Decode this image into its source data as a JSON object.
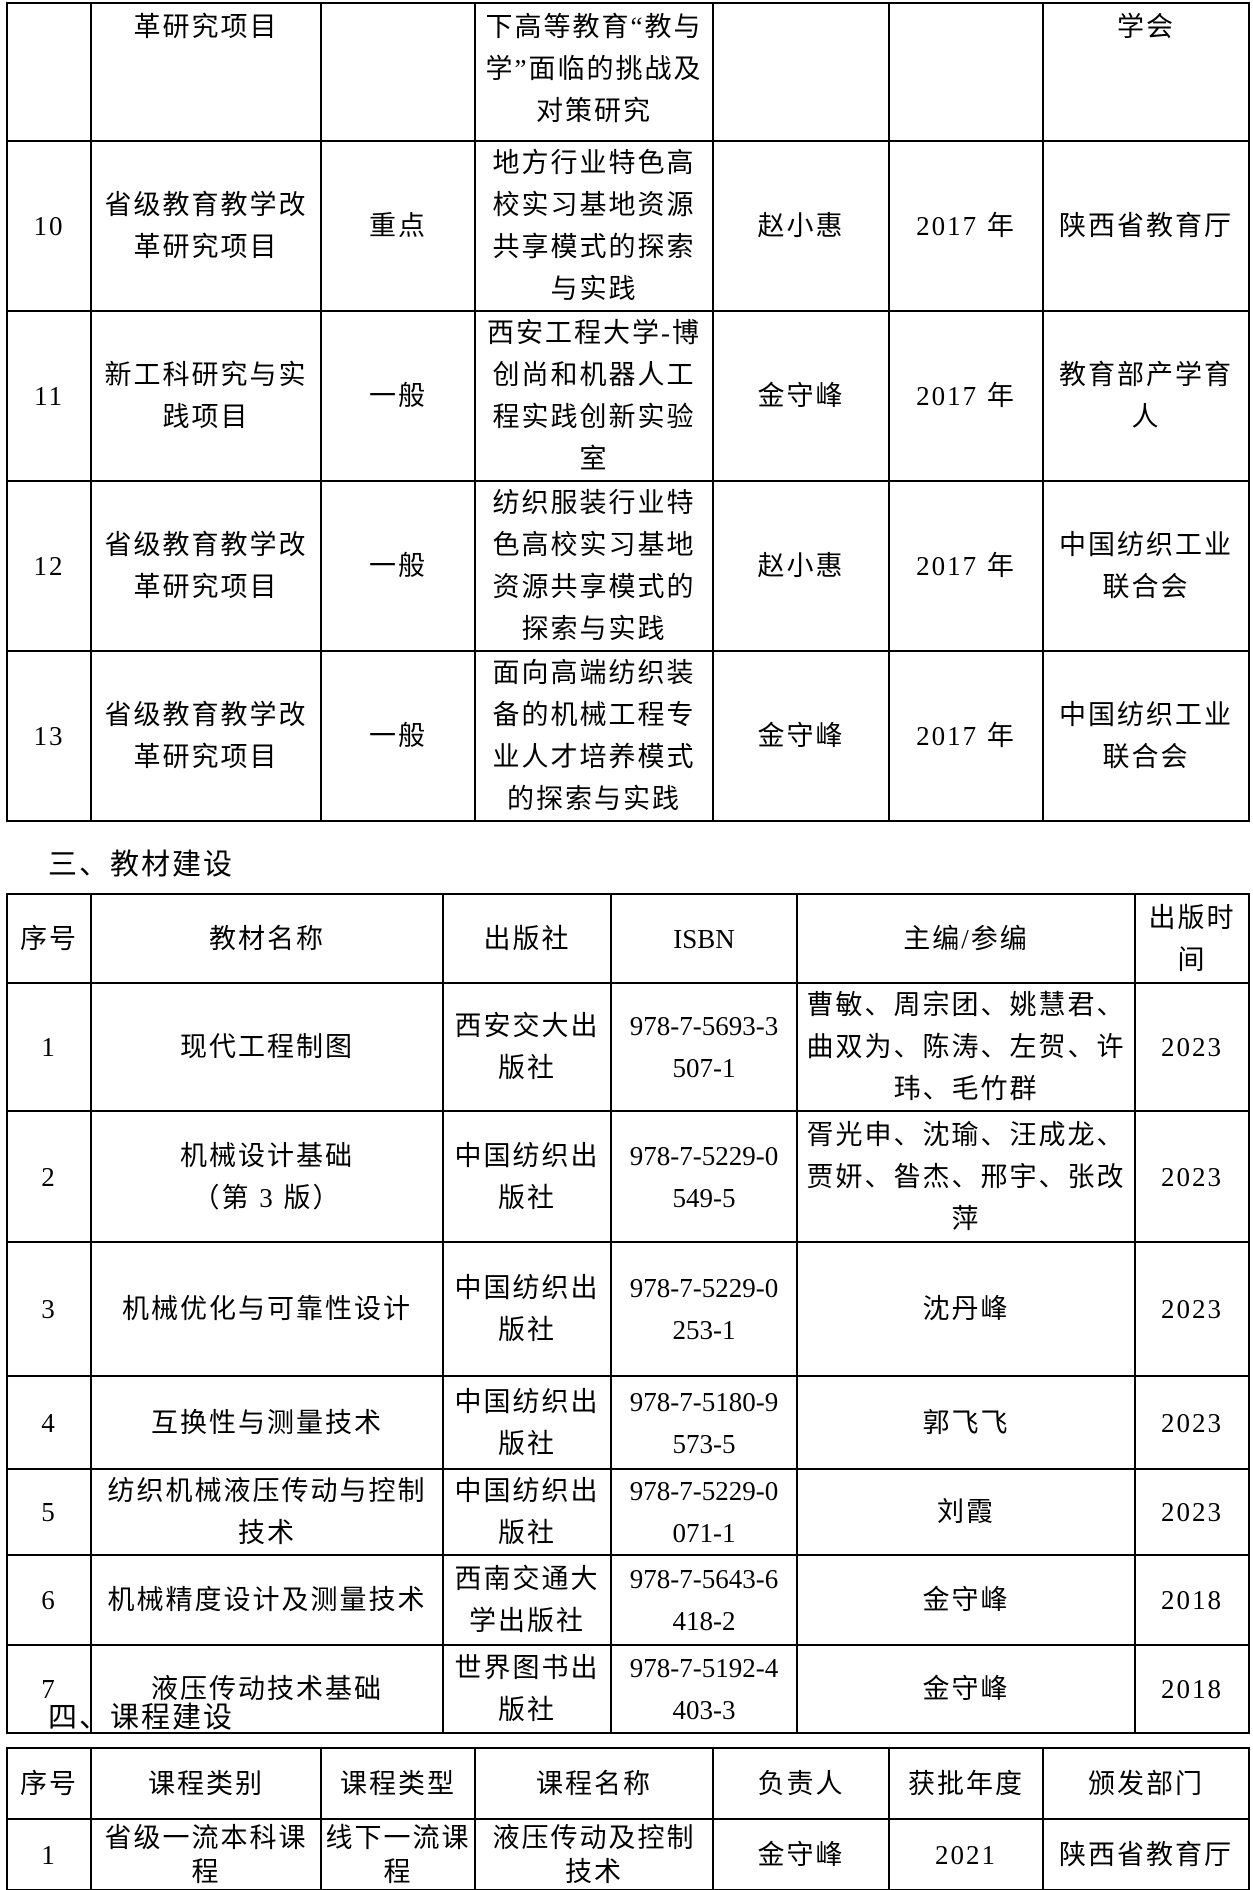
{
  "page": {
    "background_color": "#ffffff",
    "text_color": "#000000",
    "border_color": "#000000"
  },
  "sections": {
    "textbooks_heading": "三、教材建设",
    "courses_heading": "四、课程建设"
  },
  "projects_table": {
    "rows": [
      [
        "",
        "革研究项目",
        "",
        "下高等教育“教与\n学”面临的挑战及\n对策研究",
        "",
        "",
        "学会"
      ],
      [
        "10",
        "省级教育教学改\n革研究项目",
        "重点",
        "地方行业特色高\n校实习基地资源\n共享模式的探索\n与实践",
        "赵小惠",
        "2017 年",
        "陕西省教育厅"
      ],
      [
        "11",
        "新工科研究与实\n践项目",
        "一般",
        "西安工程大学-博\n创尚和机器人工\n程实践创新实验\n室",
        "金守峰",
        "2017 年",
        "教育部产学育\n人"
      ],
      [
        "12",
        "省级教育教学改\n革研究项目",
        "一般",
        "纺织服装行业特\n色高校实习基地\n资源共享模式的\n探索与实践",
        "赵小惠",
        "2017 年",
        "中国纺织工业\n联合会"
      ],
      [
        "13",
        "省级教育教学改\n革研究项目",
        "一般",
        "面向高端纺织装\n备的机械工程专\n业人才培养模式\n的探索与实践",
        "金守峰",
        "2017 年",
        "中国纺织工业\n联合会"
      ]
    ]
  },
  "textbooks_table": {
    "headers": [
      "序号",
      "教材名称",
      "出版社",
      "ISBN",
      "主编/参编",
      "出版时\n间"
    ],
    "rows": [
      [
        "1",
        "现代工程制图",
        "西安交大出\n版社",
        "978-7-5693-3\n507-1",
        "曹敏、周宗团、姚慧君、\n曲双为、陈涛、左贺、许\n玮、毛竹群",
        "2023"
      ],
      [
        "2",
        "机械设计基础\n（第 3 版）",
        "中国纺织出\n版社",
        "978-7-5229-0\n549-5",
        "胥光申、沈瑜、汪成龙、\n贾妍、昝杰、邢宇、张改\n萍",
        "2023"
      ],
      [
        "3",
        "机械优化与可靠性设计",
        "中国纺织出\n版社",
        "978-7-5229-0\n253-1",
        "沈丹峰",
        "2023"
      ],
      [
        "4",
        "互换性与测量技术",
        "中国纺织出\n版社",
        "978-7-5180-9\n573-5",
        "郭飞飞",
        "2023"
      ],
      [
        "5",
        "纺织机械液压传动与控制\n技术",
        "中国纺织出\n版社",
        "978-7-5229-0\n071-1",
        "刘霞",
        "2023"
      ],
      [
        "6",
        "机械精度设计及测量技术",
        "西南交通大\n学出版社",
        "978-7-5643-6\n418-2",
        "金守峰",
        "2018"
      ],
      [
        "7",
        "液压传动技术基础",
        "世界图书出\n版社",
        "978-7-5192-4\n403-3",
        "金守峰",
        "2018"
      ]
    ]
  },
  "courses_table": {
    "headers": [
      "序号",
      "课程类别",
      "课程类型",
      "课程名称",
      "负责人",
      "获批年度",
      "颁发部门"
    ],
    "rows": [
      [
        "1",
        "省级一流本科课\n程",
        "线下一流课\n程",
        "液压传动及控制\n技术",
        "金守峰",
        "2021",
        "陕西省教育厅"
      ]
    ]
  }
}
